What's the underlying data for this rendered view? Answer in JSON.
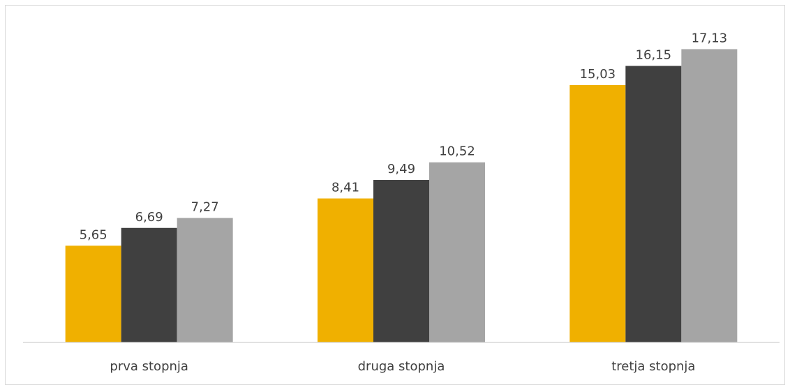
{
  "chart_data": {
    "type": "bar",
    "categories": [
      "prva stopnja",
      "druga stopnja",
      "tretja stopnja"
    ],
    "series": [
      {
        "values": [
          5.65,
          8.41,
          15.03
        ],
        "color": "#F0B000"
      },
      {
        "values": [
          6.69,
          9.49,
          16.15
        ],
        "color": "#404040"
      },
      {
        "values": [
          7.27,
          10.52,
          17.13
        ],
        "color": "#A5A5A5"
      }
    ],
    "data_labels": [
      [
        "5,65",
        "8,41",
        "15,03"
      ],
      [
        "6,69",
        "9,49",
        "16,15"
      ],
      [
        "7,27",
        "10,52",
        "17,13"
      ]
    ],
    "ylim": [
      0,
      18.7
    ],
    "grid": false,
    "legend": "none"
  }
}
